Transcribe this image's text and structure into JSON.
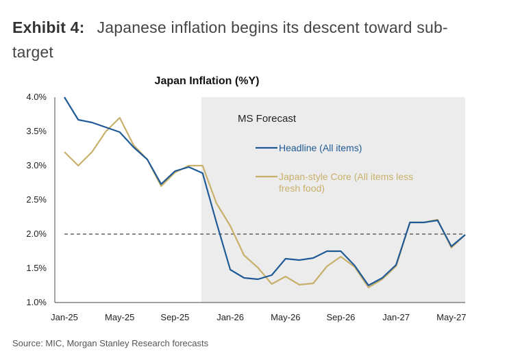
{
  "exhibit": {
    "label": "Exhibit 4:",
    "title": "Japanese inflation begins its descent toward sub-target"
  },
  "source": "Source: MIC, Morgan Stanley Research forecasts",
  "chart_data": {
    "type": "line",
    "title": "Japan Inflation (%Y)",
    "xlabel": "",
    "ylabel": "",
    "ylim": [
      1.0,
      4.0
    ],
    "yticks": [
      "4.0%",
      "3.5%",
      "3.0%",
      "2.5%",
      "2.0%",
      "1.5%",
      "1.0%"
    ],
    "ytick_values": [
      4.0,
      3.5,
      3.0,
      2.5,
      2.0,
      1.5,
      1.0
    ],
    "x": [
      "Jan-25",
      "Feb-25",
      "Mar-25",
      "Apr-25",
      "May-25",
      "Jun-25",
      "Jul-25",
      "Aug-25",
      "Sep-25",
      "Oct-25",
      "Nov-25",
      "Dec-25",
      "Jan-26",
      "Feb-26",
      "Mar-26",
      "Apr-26",
      "May-26",
      "Jun-26",
      "Jul-26",
      "Aug-26",
      "Sep-26",
      "Oct-26",
      "Nov-26",
      "Dec-26",
      "Jan-27",
      "Feb-27",
      "Mar-27",
      "Apr-27",
      "May-27",
      "Jun-27"
    ],
    "xtick_labels": [
      "Jan-25",
      "May-25",
      "Sep-25",
      "Jan-26",
      "May-26",
      "Sep-26",
      "Jan-27",
      "May-27"
    ],
    "xtick_indices": [
      0,
      4,
      8,
      12,
      16,
      20,
      24,
      28
    ],
    "series": [
      {
        "name": "Headline (All items)",
        "color": "#1f5a96",
        "values": [
          4.0,
          3.67,
          3.63,
          3.56,
          3.49,
          3.27,
          3.09,
          2.73,
          2.92,
          2.98,
          2.89,
          2.17,
          1.48,
          1.36,
          1.34,
          1.4,
          1.64,
          1.62,
          1.65,
          1.75,
          1.75,
          1.54,
          1.25,
          1.36,
          1.55,
          2.17,
          2.17,
          2.2,
          1.82,
          1.99
        ]
      },
      {
        "name": "Japan-style Core (All items less fresh food)",
        "color": "#c8b06a",
        "values": [
          3.2,
          3.0,
          3.2,
          3.5,
          3.7,
          3.3,
          3.09,
          2.7,
          2.9,
          3.0,
          3.0,
          2.45,
          2.12,
          1.69,
          1.51,
          1.27,
          1.38,
          1.26,
          1.28,
          1.53,
          1.67,
          1.52,
          1.22,
          1.34,
          1.53,
          2.17,
          2.17,
          2.21,
          1.8,
          1.99
        ]
      }
    ],
    "reference_line": {
      "value": 2.0,
      "style": "dashed"
    },
    "forecast_region": {
      "label": "MS Forecast",
      "start": "Nov-25",
      "end": "Jun-27"
    }
  }
}
